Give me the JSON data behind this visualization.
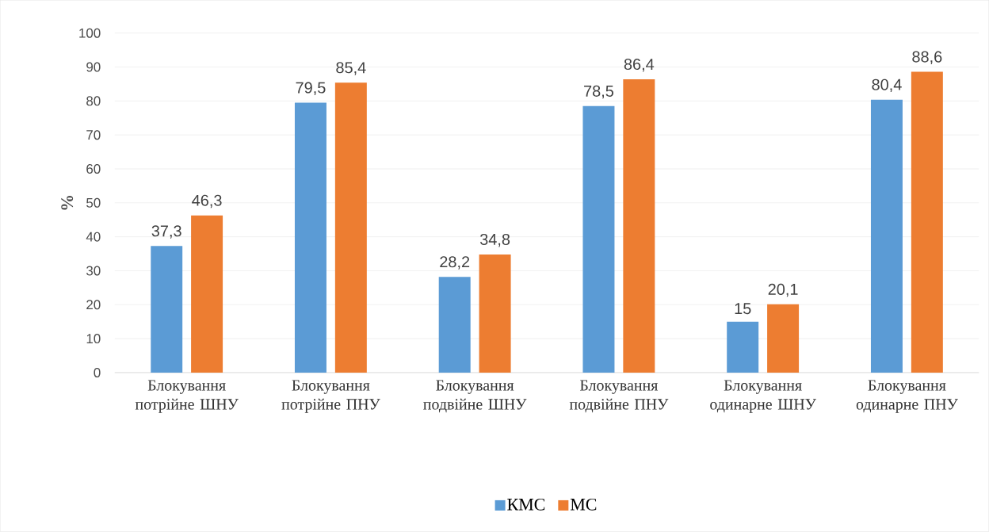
{
  "chart_data": {
    "type": "bar",
    "ylabel": "%",
    "categories": [
      "Блокування потрійне ШНУ",
      "Блокування потрійне ПНУ",
      "Блокування подвійне ШНУ",
      "Блокування подвійне ПНУ",
      "Блокування одинарне ШНУ",
      "Блокування одинарне ПНУ"
    ],
    "series": [
      {
        "name": "КМС",
        "color": "#5b9bd5",
        "values": [
          37.3,
          79.5,
          28.2,
          78.5,
          15,
          80.4
        ],
        "value_labels": [
          "37,3",
          "79,5",
          "28,2",
          "78,5",
          "15",
          "80,4"
        ]
      },
      {
        "name": "МС",
        "color": "#ed7d31",
        "values": [
          46.3,
          85.4,
          34.8,
          86.4,
          20.1,
          88.6
        ],
        "value_labels": [
          "46,3",
          "85,4",
          "34,8",
          "86,4",
          "20,1",
          "88,6"
        ]
      }
    ],
    "ylim": [
      0,
      100
    ],
    "yticks": [
      0,
      10,
      20,
      30,
      40,
      50,
      60,
      70,
      80,
      90,
      100
    ],
    "grid": "y",
    "legend": "bottom"
  }
}
